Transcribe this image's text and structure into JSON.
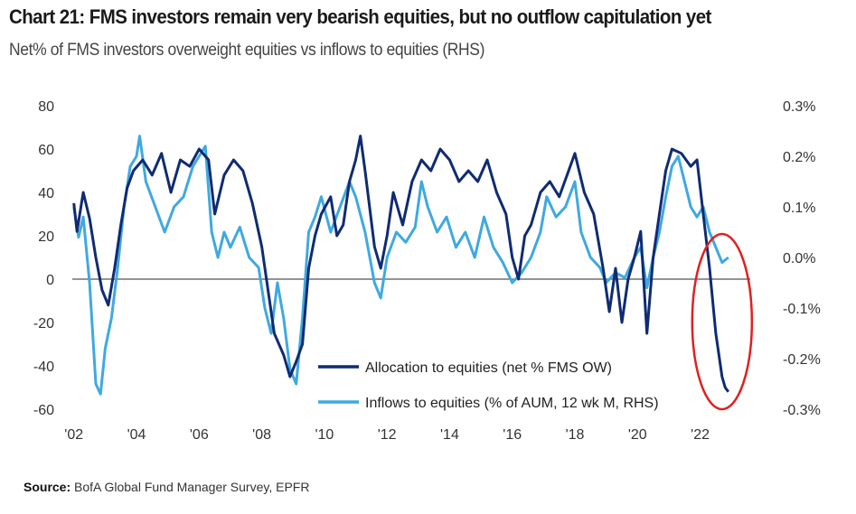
{
  "header": {
    "title": "Chart 21: FMS investors remain very bearish equities, but no outflow capitulation yet",
    "subtitle": "Net% of FMS investors overweight equities vs inflows to equities (RHS)"
  },
  "footer": {
    "source_label": "Source:",
    "source_text": "BofA Global Fund Manager Survey, EPFR"
  },
  "colors": {
    "allocation": "#0f2b72",
    "inflows": "#3fa9e0",
    "highlight_circle": "#e02020",
    "zero_line": "#555555"
  },
  "chart_data": {
    "type": "line",
    "title": "Chart 21: FMS investors remain very bearish equities, but no outflow capitulation yet",
    "subtitle": "Net% of FMS investors overweight equities vs inflows to equities (RHS)",
    "x_range": [
      2001.95,
      2023.6
    ],
    "x_ticks": [
      2002,
      2004,
      2006,
      2008,
      2010,
      2012,
      2014,
      2016,
      2018,
      2020,
      2022
    ],
    "x_tick_labels": [
      "'02",
      "'04",
      "'06",
      "'08",
      "'10",
      "'12",
      "'14",
      "'16",
      "'18",
      "'20",
      "'22"
    ],
    "y_left": {
      "range": [
        -60,
        80
      ],
      "ticks": [
        80,
        60,
        40,
        20,
        0,
        -20,
        -40,
        -60
      ],
      "tick_labels": [
        "80",
        "60",
        "40",
        "20",
        "0",
        "-20",
        "-40",
        "-60"
      ]
    },
    "y_right": {
      "range": [
        -0.3,
        0.3
      ],
      "ticks": [
        0.3,
        0.2,
        0.1,
        0.0,
        -0.1,
        -0.2,
        -0.3
      ],
      "tick_labels": [
        "0.3%",
        "0.2%",
        "0.1%",
        "0.0%",
        "-0.1%",
        "-0.2%",
        "-0.3%"
      ]
    },
    "legend_position": "bottom-right",
    "annotation": "red circle highlighting 2022 readings",
    "series": [
      {
        "name": "Allocation to equities (net % FMS OW)",
        "axis": "left",
        "points": [
          [
            2002.0,
            35
          ],
          [
            2002.1,
            22
          ],
          [
            2002.3,
            40
          ],
          [
            2002.5,
            28
          ],
          [
            2002.7,
            10
          ],
          [
            2002.9,
            -5
          ],
          [
            2003.1,
            -12
          ],
          [
            2003.3,
            5
          ],
          [
            2003.5,
            25
          ],
          [
            2003.7,
            42
          ],
          [
            2003.9,
            50
          ],
          [
            2004.2,
            55
          ],
          [
            2004.5,
            48
          ],
          [
            2004.8,
            58
          ],
          [
            2005.1,
            40
          ],
          [
            2005.4,
            55
          ],
          [
            2005.7,
            52
          ],
          [
            2006.0,
            60
          ],
          [
            2006.3,
            55
          ],
          [
            2006.5,
            30
          ],
          [
            2006.8,
            48
          ],
          [
            2007.1,
            55
          ],
          [
            2007.4,
            50
          ],
          [
            2007.7,
            35
          ],
          [
            2008.0,
            15
          ],
          [
            2008.2,
            -5
          ],
          [
            2008.4,
            -25
          ],
          [
            2008.7,
            -35
          ],
          [
            2008.9,
            -45
          ],
          [
            2009.1,
            -38
          ],
          [
            2009.3,
            -30
          ],
          [
            2009.5,
            5
          ],
          [
            2009.7,
            20
          ],
          [
            2009.9,
            30
          ],
          [
            2010.2,
            38
          ],
          [
            2010.4,
            20
          ],
          [
            2010.6,
            25
          ],
          [
            2010.8,
            45
          ],
          [
            2011.0,
            55
          ],
          [
            2011.15,
            66
          ],
          [
            2011.3,
            50
          ],
          [
            2011.6,
            15
          ],
          [
            2011.8,
            5
          ],
          [
            2012.0,
            20
          ],
          [
            2012.2,
            40
          ],
          [
            2012.5,
            25
          ],
          [
            2012.8,
            45
          ],
          [
            2013.1,
            55
          ],
          [
            2013.4,
            50
          ],
          [
            2013.7,
            60
          ],
          [
            2014.0,
            55
          ],
          [
            2014.3,
            45
          ],
          [
            2014.6,
            50
          ],
          [
            2014.9,
            45
          ],
          [
            2015.2,
            55
          ],
          [
            2015.5,
            40
          ],
          [
            2015.8,
            30
          ],
          [
            2016.0,
            10
          ],
          [
            2016.2,
            0
          ],
          [
            2016.4,
            20
          ],
          [
            2016.6,
            25
          ],
          [
            2016.9,
            40
          ],
          [
            2017.2,
            45
          ],
          [
            2017.5,
            38
          ],
          [
            2017.8,
            50
          ],
          [
            2018.0,
            58
          ],
          [
            2018.3,
            40
          ],
          [
            2018.6,
            30
          ],
          [
            2018.9,
            5
          ],
          [
            2019.1,
            -15
          ],
          [
            2019.3,
            5
          ],
          [
            2019.5,
            -20
          ],
          [
            2019.7,
            0
          ],
          [
            2019.9,
            10
          ],
          [
            2020.1,
            22
          ],
          [
            2020.3,
            -25
          ],
          [
            2020.5,
            10
          ],
          [
            2020.7,
            30
          ],
          [
            2020.9,
            50
          ],
          [
            2021.1,
            60
          ],
          [
            2021.4,
            58
          ],
          [
            2021.7,
            52
          ],
          [
            2021.9,
            55
          ],
          [
            2022.1,
            30
          ],
          [
            2022.3,
            5
          ],
          [
            2022.5,
            -25
          ],
          [
            2022.7,
            -45
          ],
          [
            2022.8,
            -50
          ],
          [
            2022.9,
            -52
          ]
        ]
      },
      {
        "name": "Inflows to equities (% of AUM, 12 wk M, RHS)",
        "axis": "right",
        "points": [
          [
            2002.0,
            0.1
          ],
          [
            2002.15,
            0.04
          ],
          [
            2002.3,
            0.08
          ],
          [
            2002.5,
            -0.05
          ],
          [
            2002.7,
            -0.25
          ],
          [
            2002.85,
            -0.27
          ],
          [
            2003.0,
            -0.18
          ],
          [
            2003.2,
            -0.12
          ],
          [
            2003.4,
            -0.02
          ],
          [
            2003.6,
            0.1
          ],
          [
            2003.8,
            0.18
          ],
          [
            2004.0,
            0.2
          ],
          [
            2004.1,
            0.24
          ],
          [
            2004.3,
            0.15
          ],
          [
            2004.6,
            0.1
          ],
          [
            2004.9,
            0.05
          ],
          [
            2005.2,
            0.1
          ],
          [
            2005.5,
            0.12
          ],
          [
            2005.8,
            0.18
          ],
          [
            2006.0,
            0.2
          ],
          [
            2006.2,
            0.22
          ],
          [
            2006.4,
            0.05
          ],
          [
            2006.6,
            0.0
          ],
          [
            2006.8,
            0.05
          ],
          [
            2007.0,
            0.02
          ],
          [
            2007.3,
            0.06
          ],
          [
            2007.6,
            0.0
          ],
          [
            2007.9,
            -0.02
          ],
          [
            2008.1,
            -0.1
          ],
          [
            2008.3,
            -0.15
          ],
          [
            2008.5,
            -0.05
          ],
          [
            2008.7,
            -0.12
          ],
          [
            2008.9,
            -0.22
          ],
          [
            2009.1,
            -0.25
          ],
          [
            2009.3,
            -0.12
          ],
          [
            2009.5,
            0.05
          ],
          [
            2009.7,
            0.08
          ],
          [
            2009.9,
            0.12
          ],
          [
            2010.2,
            0.05
          ],
          [
            2010.5,
            0.1
          ],
          [
            2010.8,
            0.15
          ],
          [
            2011.0,
            0.12
          ],
          [
            2011.3,
            0.05
          ],
          [
            2011.6,
            -0.05
          ],
          [
            2011.8,
            -0.08
          ],
          [
            2012.0,
            0.0
          ],
          [
            2012.3,
            0.05
          ],
          [
            2012.6,
            0.03
          ],
          [
            2012.9,
            0.06
          ],
          [
            2013.1,
            0.15
          ],
          [
            2013.3,
            0.1
          ],
          [
            2013.6,
            0.05
          ],
          [
            2013.9,
            0.08
          ],
          [
            2014.2,
            0.02
          ],
          [
            2014.5,
            0.05
          ],
          [
            2014.8,
            0.0
          ],
          [
            2015.1,
            0.08
          ],
          [
            2015.4,
            0.02
          ],
          [
            2015.7,
            -0.01
          ],
          [
            2016.0,
            -0.05
          ],
          [
            2016.3,
            -0.03
          ],
          [
            2016.6,
            0.0
          ],
          [
            2016.9,
            0.05
          ],
          [
            2017.1,
            0.12
          ],
          [
            2017.4,
            0.08
          ],
          [
            2017.7,
            0.1
          ],
          [
            2018.0,
            0.15
          ],
          [
            2018.2,
            0.05
          ],
          [
            2018.5,
            0.0
          ],
          [
            2018.8,
            -0.02
          ],
          [
            2019.0,
            -0.05
          ],
          [
            2019.3,
            -0.03
          ],
          [
            2019.6,
            -0.04
          ],
          [
            2019.9,
            0.0
          ],
          [
            2020.1,
            0.02
          ],
          [
            2020.3,
            -0.06
          ],
          [
            2020.5,
            0.0
          ],
          [
            2020.7,
            0.05
          ],
          [
            2020.9,
            0.12
          ],
          [
            2021.1,
            0.18
          ],
          [
            2021.3,
            0.2
          ],
          [
            2021.5,
            0.15
          ],
          [
            2021.7,
            0.1
          ],
          [
            2021.9,
            0.08
          ],
          [
            2022.1,
            0.1
          ],
          [
            2022.3,
            0.05
          ],
          [
            2022.5,
            0.02
          ],
          [
            2022.7,
            -0.01
          ],
          [
            2022.9,
            0.0
          ]
        ]
      }
    ]
  }
}
